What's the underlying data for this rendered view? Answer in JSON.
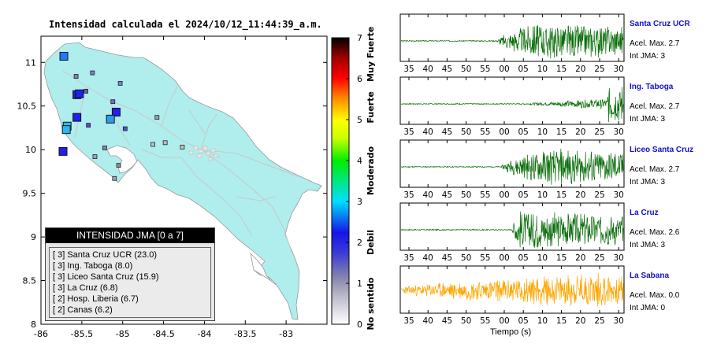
{
  "title": "Intensidad calculada el 2024/10/12_11:44:39_a.m.",
  "map": {
    "x_ticks": [
      "-86",
      "-85.5",
      "-85",
      "-84.5",
      "-84",
      "-83.5",
      "-83"
    ],
    "y_ticks": [
      "11",
      "10.5",
      "10",
      "9.5",
      "9",
      "8.5",
      "8"
    ],
    "land_color": "#b0eded",
    "stations_major": [
      {
        "lon": -85.72,
        "lat": 11.07,
        "color": "#1e7bff"
      },
      {
        "lon": -85.56,
        "lat": 10.63,
        "color": "#1f1ff0"
      },
      {
        "lon": -85.53,
        "lat": 10.64,
        "color": "#1f1ff0"
      },
      {
        "lon": -85.56,
        "lat": 10.37,
        "color": "#1f1ff0"
      },
      {
        "lon": -85.68,
        "lat": 10.27,
        "color": "#2ab8f0"
      },
      {
        "lon": -85.69,
        "lat": 10.23,
        "color": "#2ab8f0"
      },
      {
        "lon": -85.73,
        "lat": 9.98,
        "color": "#1f1ff0"
      },
      {
        "lon": -85.08,
        "lat": 10.43,
        "color": "#1f1ff0"
      },
      {
        "lon": -85.15,
        "lat": 10.35,
        "color": "#2a9df0"
      }
    ],
    "stations_minor": [
      {
        "lon": -85.03,
        "lat": 10.76,
        "color": "#8080c0"
      },
      {
        "lon": -85.37,
        "lat": 10.88,
        "color": "#8080c0"
      },
      {
        "lon": -85.57,
        "lat": 10.84,
        "color": "#8080c0"
      },
      {
        "lon": -84.97,
        "lat": 10.24,
        "color": "#5050d0"
      },
      {
        "lon": -85.12,
        "lat": 10.55,
        "color": "#7070c0"
      },
      {
        "lon": -85.45,
        "lat": 10.67,
        "color": "#6060c0"
      },
      {
        "lon": -85.22,
        "lat": 10.02,
        "color": "#8080c0"
      },
      {
        "lon": -85.34,
        "lat": 9.92,
        "color": "#a0a0c0"
      },
      {
        "lon": -85.42,
        "lat": 10.28,
        "color": "#5050d0"
      },
      {
        "lon": -84.58,
        "lat": 10.37,
        "color": "#a0a0b0"
      },
      {
        "lon": -84.48,
        "lat": 10.08,
        "color": "#c0c0c0"
      },
      {
        "lon": -84.27,
        "lat": 10.03,
        "color": "#c0c0c0"
      },
      {
        "lon": -84.63,
        "lat": 10.06,
        "color": "#c0c0c0"
      },
      {
        "lon": -85.1,
        "lat": 9.67,
        "color": "#a0a0b0"
      },
      {
        "lon": -85.05,
        "lat": 9.82,
        "color": "#909090"
      }
    ],
    "legend": {
      "header": "INTENSIDAD JMA [0 a 7]",
      "items": [
        "[ 3] Santa Cruz UCR (23.0)",
        "[ 3] Ing. Taboga (8.0)",
        "[ 3] Liceo Santa Cruz (15.9)",
        "[ 3] La Cruz (6.8)",
        "[ 2] Hosp. Liberia (6.7)",
        "[ 2] Canas (6.2)"
      ]
    }
  },
  "colorbar": {
    "ticks": [
      "0",
      "1",
      "2",
      "3",
      "4",
      "5",
      "6",
      "7"
    ],
    "labels": [
      "No sentido",
      "Debil",
      "Moderado",
      "Fuerte",
      "Muy Fuerte"
    ],
    "stops": [
      "#ffffff",
      "#8888aa",
      "#1515e6",
      "#00e0ff",
      "#00ee00",
      "#ffff00",
      "#ff8800",
      "#ff0000",
      "#000000"
    ]
  },
  "seismograms": {
    "x_ticks": [
      "35",
      "40",
      "45",
      "50",
      "55",
      "00",
      "05",
      "10",
      "15",
      "20",
      "25",
      "30"
    ],
    "xlabel": "Tiempo (s)",
    "panels": [
      {
        "name": "Santa Cruz UCR",
        "accel": "Acel. Max. 2.7",
        "intensity": "Int JMA: 3",
        "color": "#0a6e0a",
        "onset": 0.43,
        "peak": 0.61,
        "decay": 0.55,
        "amp": 0.95,
        "seed": 3
      },
      {
        "name": "Ing. Taboga",
        "accel": "Acel. Max. 2.7",
        "intensity": "Int JMA: 3",
        "color": "#0a6e0a",
        "onset": 0.55,
        "peak": 0.99,
        "decay": 4.0,
        "amp": 1.0,
        "seed": 7
      },
      {
        "name": "Liceo Santa Cruz",
        "accel": "Acel. Max. 2.7",
        "intensity": "Int JMA: 3",
        "color": "#0a6e0a",
        "onset": 0.45,
        "peak": 0.66,
        "decay": 0.5,
        "amp": 0.95,
        "seed": 11
      },
      {
        "name": "La Cruz",
        "accel": "Acel. Max. 2.6",
        "intensity": "Int JMA: 3",
        "color": "#0a6e0a",
        "onset": 0.5,
        "peak": 0.53,
        "decay": 0.6,
        "amp": 1.0,
        "seed": 17
      },
      {
        "name": "La Sabana",
        "accel": "Acel. Max. 0.0",
        "intensity": "Int JMA: 0",
        "color": "#ffa500",
        "onset": 0.0,
        "peak": 0.93,
        "decay": 3.0,
        "amp": 0.9,
        "seed": 23,
        "noise": 0.18
      }
    ]
  }
}
